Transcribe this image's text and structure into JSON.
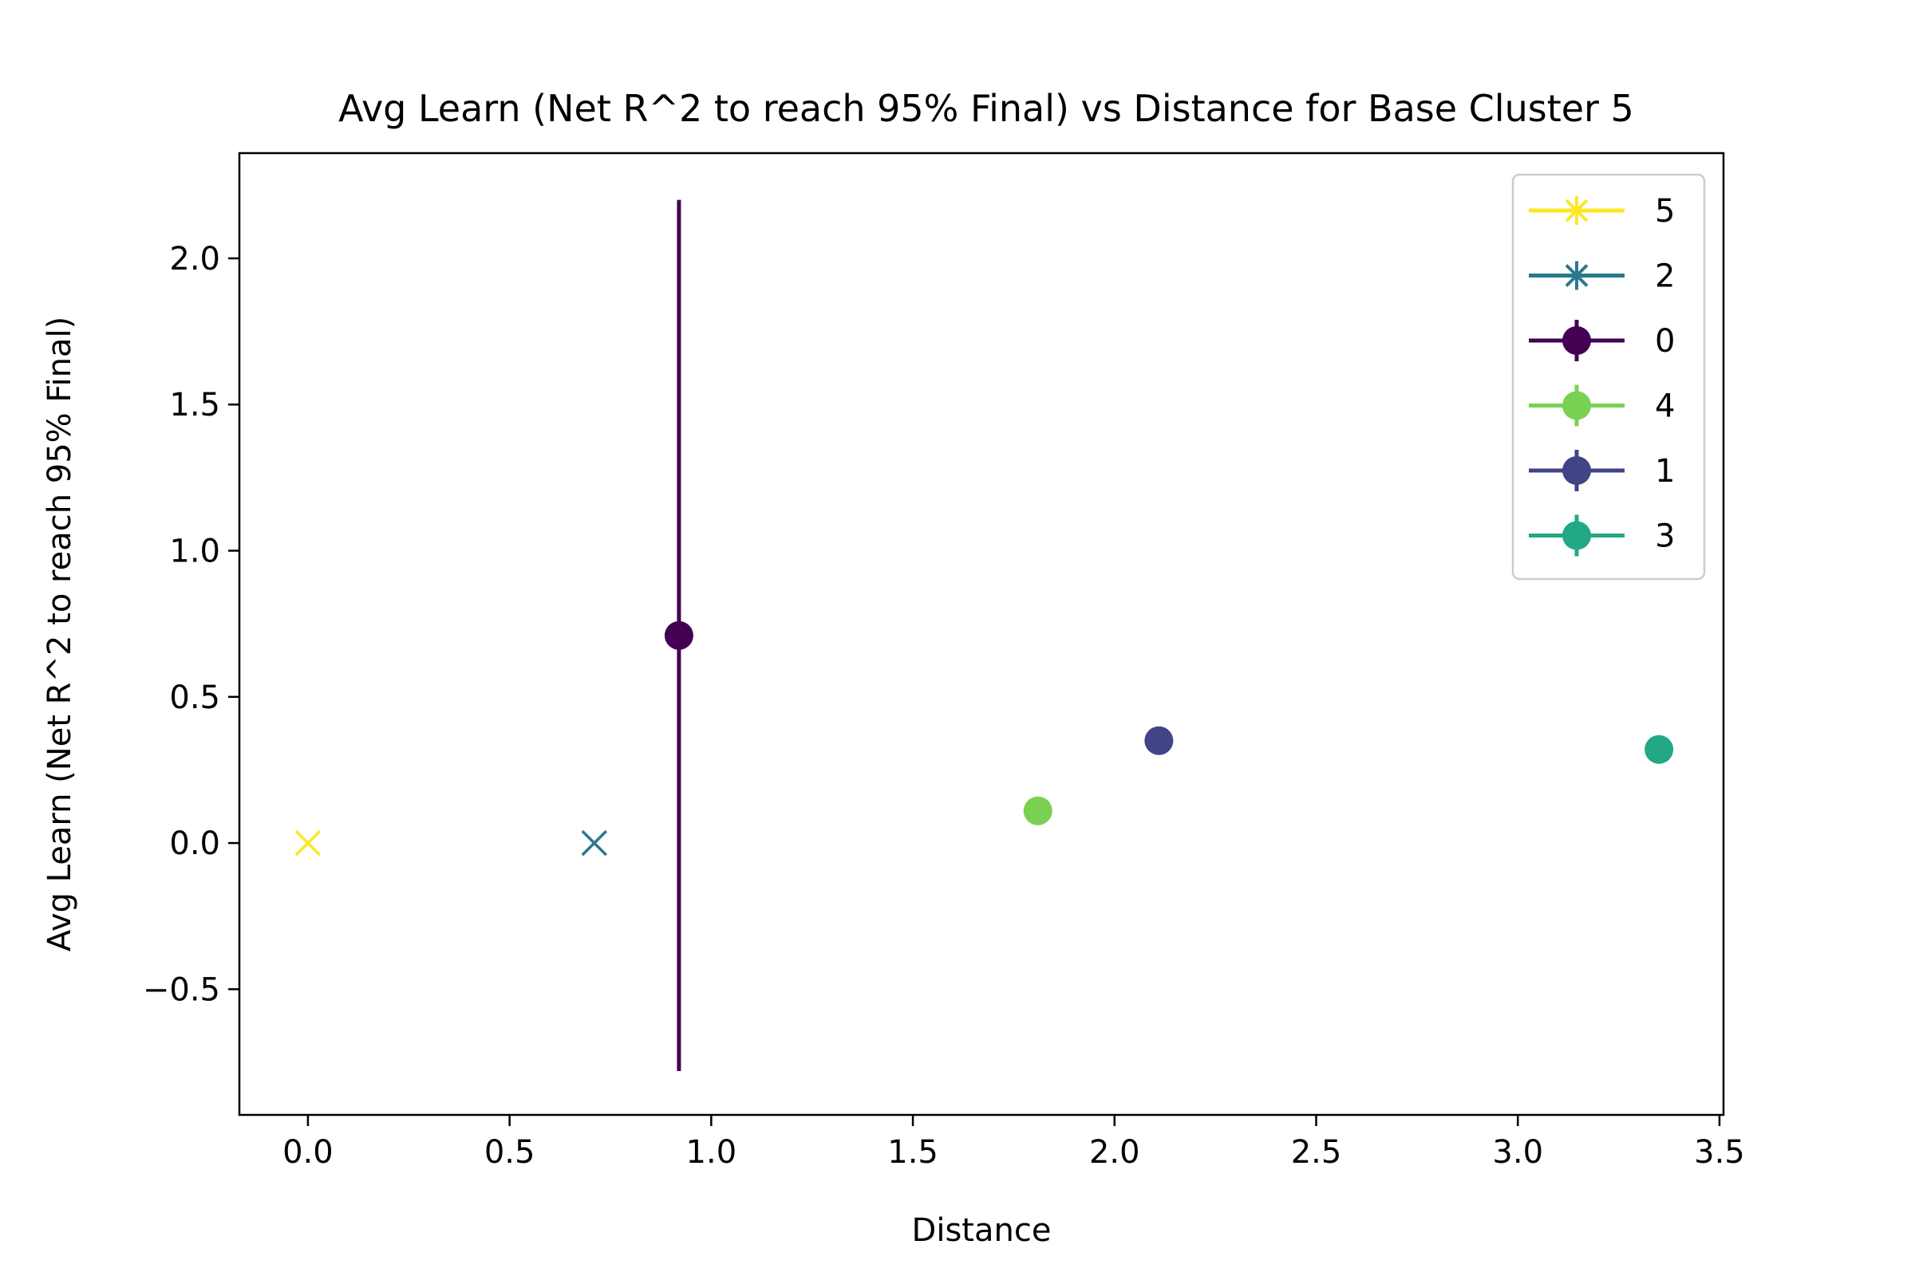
{
  "chart_data": {
    "type": "scatter",
    "title": "Avg Learn (Net R^2 to reach 95% Final) vs Distance for Base Cluster 5",
    "xlabel": "Distance",
    "ylabel": "Avg Learn (Net R^2 to reach 95% Final)",
    "xlim": [
      -0.17,
      3.51
    ],
    "ylim": [
      -0.93,
      2.36
    ],
    "xticks": [
      0.0,
      0.5,
      1.0,
      1.5,
      2.0,
      2.5,
      3.0,
      3.5
    ],
    "xtick_labels": [
      "0.0",
      "0.5",
      "1.0",
      "1.5",
      "2.0",
      "2.5",
      "3.0",
      "3.5"
    ],
    "yticks": [
      -0.5,
      0.0,
      0.5,
      1.0,
      1.5,
      2.0
    ],
    "ytick_labels": [
      "−0.5",
      "0.0",
      "0.5",
      "1.0",
      "1.5",
      "2.0"
    ],
    "grid": false,
    "legend_position": "upper-right",
    "series": [
      {
        "name": "5",
        "color": "#fde725",
        "marker": "x",
        "x": 0.0,
        "y": 0.0,
        "err": 0.0
      },
      {
        "name": "2",
        "color": "#2a788e",
        "marker": "x",
        "x": 0.71,
        "y": 0.0,
        "err": 0.0
      },
      {
        "name": "0",
        "color": "#440154",
        "marker": "o",
        "x": 0.92,
        "y": 0.71,
        "err": 1.49
      },
      {
        "name": "4",
        "color": "#7ad151",
        "marker": "o",
        "x": 1.81,
        "y": 0.11,
        "err": 0.0
      },
      {
        "name": "1",
        "color": "#414487",
        "marker": "o",
        "x": 2.11,
        "y": 0.35,
        "err": 0.0
      },
      {
        "name": "3",
        "color": "#22a884",
        "marker": "o",
        "x": 3.35,
        "y": 0.32,
        "err": 0.0
      }
    ]
  }
}
